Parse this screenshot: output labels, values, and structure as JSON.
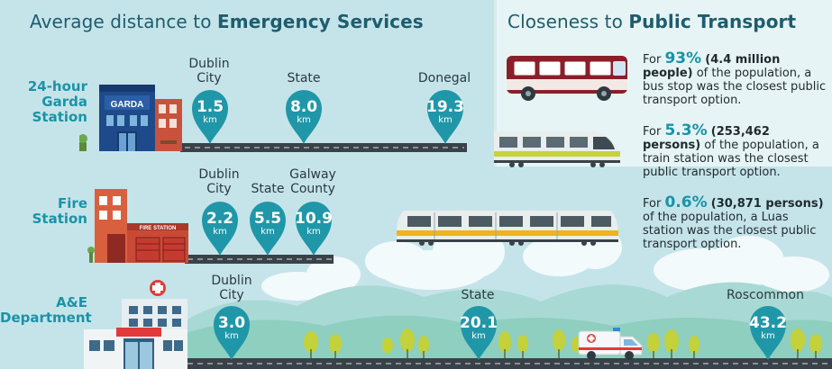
{
  "emergency": {
    "title_regular": "Average distance to ",
    "title_bold": "Emergency Services",
    "garda": {
      "label": "24-hour Garda Station",
      "label_lines": [
        "24-hour",
        "Garda",
        "Station"
      ],
      "building_sign": "GARDA",
      "stops": [
        {
          "place": [
            "Dublin",
            "City"
          ],
          "value": "1.5",
          "unit": "km"
        },
        {
          "place": [
            "State"
          ],
          "value": "8.0",
          "unit": "km"
        },
        {
          "place": [
            "Donegal"
          ],
          "value": "19.3",
          "unit": "km"
        }
      ]
    },
    "fire": {
      "label": "Fire Station",
      "label_lines": [
        "Fire",
        "Station"
      ],
      "building_sign": "FIRE STATION",
      "stops": [
        {
          "place": [
            "Dublin",
            "City"
          ],
          "value": "2.2",
          "unit": "km"
        },
        {
          "place": [
            "State"
          ],
          "value": "5.5",
          "unit": "km"
        },
        {
          "place": [
            "Galway",
            "County"
          ],
          "value": "10.9",
          "unit": "km"
        }
      ]
    },
    "ae": {
      "label": "A&E Department",
      "label_lines": [
        "A&E",
        "Department"
      ],
      "stops": [
        {
          "place": [
            "Dublin",
            "City"
          ],
          "value": "3.0",
          "unit": "km"
        },
        {
          "place": [
            "State"
          ],
          "value": "20.1",
          "unit": "km"
        },
        {
          "place": [
            "Roscommon"
          ],
          "value": "43.2",
          "unit": "km"
        }
      ]
    }
  },
  "transport": {
    "title_regular": "Closeness to ",
    "title_bold": "Public Transport",
    "facts": [
      {
        "prefix": "For ",
        "percent": "93%",
        "count": "(4.4 million people)",
        "text": "of the population, a bus stop was the closest public transport option."
      },
      {
        "prefix": "For ",
        "percent": "5.3%",
        "count": "(253,462 persons)",
        "text": "of the population, a train station was the closest public transport option."
      },
      {
        "prefix": "For ",
        "percent": "0.6%",
        "count": "(30,871 persons)",
        "text": "of the population, a Luas station was the closest public transport option."
      }
    ]
  },
  "colors": {
    "accent": "#1a93a6",
    "title": "#1d5d6e",
    "road": "#394149",
    "pin": "#1f97a8"
  },
  "icons": [
    "garda-station-icon",
    "fire-station-icon",
    "hospital-icon",
    "bus-icon",
    "train-icon",
    "luas-tram-icon",
    "ambulance-icon",
    "location-pin-icon"
  ]
}
